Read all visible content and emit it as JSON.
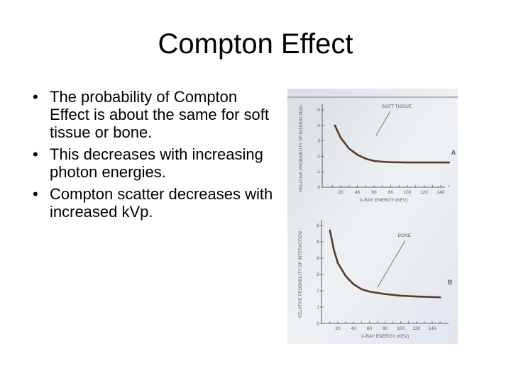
{
  "slide": {
    "title": "Compton Effect",
    "bullets": [
      "The probability of Compton Effect is about the same for soft tissue or bone.",
      "This decreases with increasing photon energies.",
      "Compton scatter decreases with increased kVp."
    ],
    "bullet_glyph": "•"
  },
  "figure": {
    "panels": [
      {
        "panel_label": "A",
        "curve_label": "SOFT TISSUE",
        "ylabel": "RELATIVE PROBABILITY OF INTERACTION",
        "xlabel": "X-RAY ENERGY (KEV)",
        "x_ticks": [
          "20",
          "40",
          "60",
          "80",
          "100",
          "120",
          "140"
        ],
        "y_ticks": [
          "0",
          ".1",
          ".2",
          ".3",
          ".4",
          ".5"
        ],
        "x": [
          13,
          20,
          30,
          40,
          50,
          60,
          70,
          80,
          100,
          120,
          150
        ],
        "y": [
          0.4,
          0.32,
          0.25,
          0.21,
          0.185,
          0.17,
          0.165,
          0.162,
          0.16,
          0.16,
          0.16
        ]
      },
      {
        "panel_label": "B",
        "curve_label": "BONE",
        "ylabel": "RELATIVE PROBABILITY OF INTERACTION",
        "xlabel": "X-RAY ENERGY (KEV)",
        "x_ticks": [
          "20",
          "40",
          "60",
          "80",
          "100",
          "120",
          "140"
        ],
        "y_ticks": [
          "0",
          ".1",
          ".2",
          ".3",
          ".4",
          ".5",
          ".6"
        ],
        "x": [
          10,
          15,
          20,
          30,
          40,
          50,
          60,
          80,
          100,
          120,
          150
        ],
        "y": [
          0.57,
          0.45,
          0.37,
          0.29,
          0.24,
          0.21,
          0.195,
          0.18,
          0.17,
          0.165,
          0.16
        ]
      }
    ],
    "colors": {
      "curve": "#5a3a2a",
      "ink": "#55606a",
      "background": "#e4e9ee"
    }
  }
}
